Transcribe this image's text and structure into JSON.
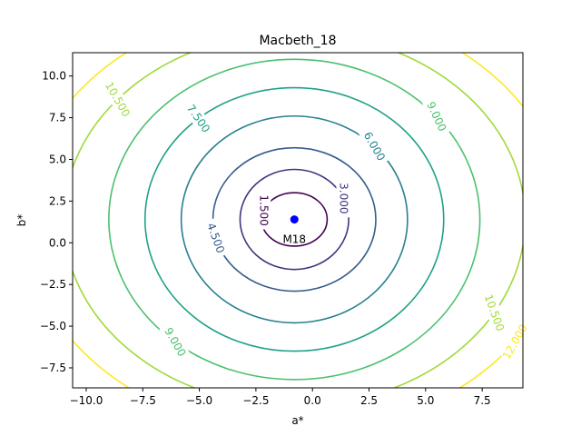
{
  "chart_data": {
    "type": "contour",
    "title": "Macbeth_18",
    "xlabel": "a*",
    "ylabel": "b*",
    "xlim": [
      -10.6,
      9.3
    ],
    "ylim": [
      -8.7,
      11.4
    ],
    "xticks": [
      {
        "value": -10.0,
        "label": "−10.0"
      },
      {
        "value": -7.5,
        "label": "−7.5"
      },
      {
        "value": -5.0,
        "label": "−5.0"
      },
      {
        "value": -2.5,
        "label": "−2.5"
      },
      {
        "value": 0.0,
        "label": "0.0"
      },
      {
        "value": 2.5,
        "label": "2.5"
      },
      {
        "value": 5.0,
        "label": "5.0"
      },
      {
        "value": 7.5,
        "label": "7.5"
      }
    ],
    "yticks": [
      {
        "value": -7.5,
        "label": "−7.5"
      },
      {
        "value": -5.0,
        "label": "−5.0"
      },
      {
        "value": -2.5,
        "label": "−2.5"
      },
      {
        "value": 0.0,
        "label": "0.0"
      },
      {
        "value": 2.5,
        "label": "2.5"
      },
      {
        "value": 5.0,
        "label": "5.0"
      },
      {
        "value": 7.5,
        "label": "7.5"
      },
      {
        "value": 10.0,
        "label": "10.0"
      }
    ],
    "center": {
      "a": -0.8,
      "b": 1.4
    },
    "point": {
      "a": -0.8,
      "b": 1.4,
      "label": "M18",
      "color": "#0000ff"
    },
    "levels": [
      {
        "value": 1.5,
        "label": "1.500",
        "ra": 1.45,
        "rb": 1.6,
        "color": "#440154"
      },
      {
        "value": 3.0,
        "label": "3.000",
        "ra": 2.4,
        "rb": 3.0,
        "color": "#46337e"
      },
      {
        "value": 4.5,
        "label": "4.500",
        "ra": 3.6,
        "rb": 4.3,
        "color": "#365c8d"
      },
      {
        "value": 6.0,
        "label": "6.000",
        "ra": 5.0,
        "rb": 6.2,
        "color": "#277f8e"
      },
      {
        "value": 7.5,
        "label": "7.500",
        "ra": 6.6,
        "rb": 7.9,
        "color": "#1fa187"
      },
      {
        "value": 9.0,
        "label": "9.000",
        "ra": 8.2,
        "rb": 9.6,
        "color": "#4ac16d"
      },
      {
        "value": 10.5,
        "label": "10.500",
        "ra": 10.2,
        "rb": 11.2,
        "color": "#a0da39"
      },
      {
        "value": 12.0,
        "label": "12.000",
        "ra": 11.9,
        "rb": 12.8,
        "color": "#fde725"
      }
    ],
    "grid": false,
    "legend": "none"
  }
}
